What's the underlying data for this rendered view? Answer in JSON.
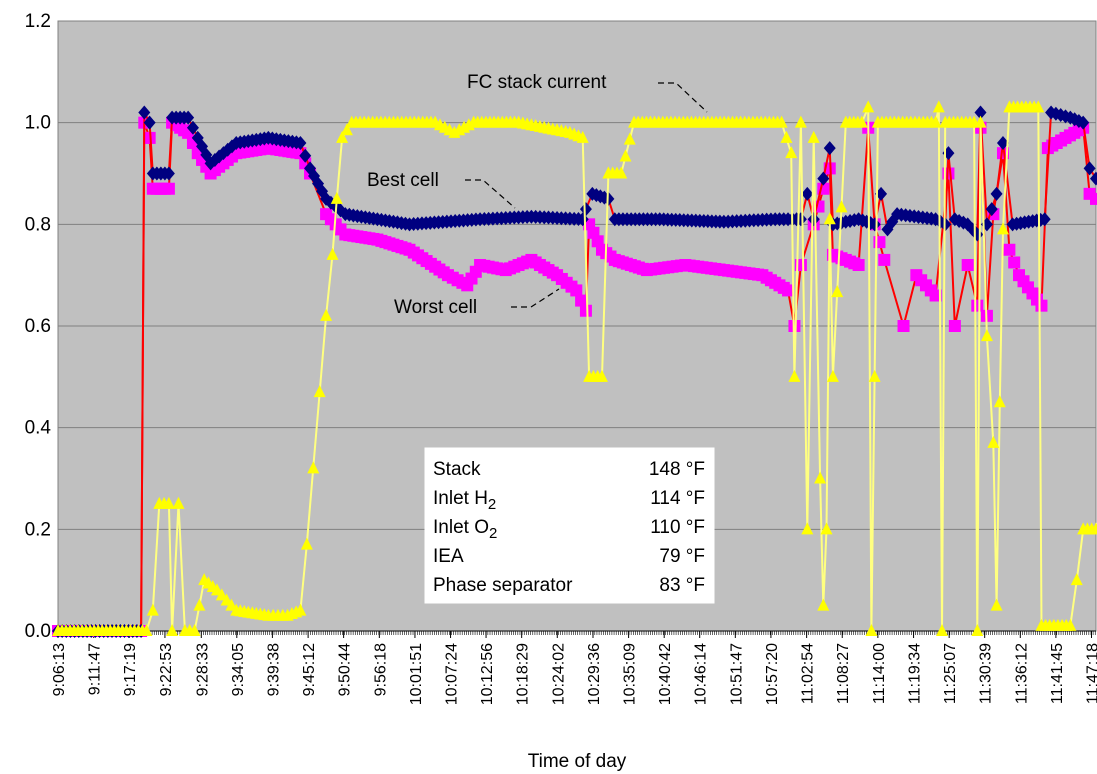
{
  "chart_data": {
    "type": "line",
    "title": "",
    "xlabel": "Time of day",
    "ylabel": "",
    "ylim": [
      0,
      1.2
    ],
    "y_ticks": [
      "0.0",
      "0.2",
      "0.4",
      "0.6",
      "0.8",
      "1.0",
      "1.2"
    ],
    "grid": "horizontal",
    "x_tick_labels": [
      "9:06:13",
      "9:11:47",
      "9:17:19",
      "9:22:53",
      "9:28:33",
      "9:34:05",
      "9:39:38",
      "9:45:12",
      "9:50:44",
      "9:56:18",
      "10:01:51",
      "10:07:24",
      "10:12:56",
      "10:18:29",
      "10:24:02",
      "10:29:36",
      "10:35:09",
      "10:40:42",
      "10:46:14",
      "10:51:47",
      "10:57:20",
      "11:02:54",
      "11:08:27",
      "11:14:00",
      "11:19:34",
      "11:25:07",
      "11:30:39",
      "11:36:12",
      "11:41:45",
      "11:47:18"
    ],
    "x_start": "9:06:13",
    "x_end": "11:48:00",
    "series": [
      {
        "name": "Best cell",
        "color": "#000080",
        "marker": "diamond",
        "points": [
          [
            "9:06:13",
            0.0
          ],
          [
            "9:19:10",
            0.0
          ],
          [
            "9:19:40",
            1.02
          ],
          [
            "9:20:30",
            1.0
          ],
          [
            "9:21:00",
            0.9
          ],
          [
            "9:23:30",
            0.9
          ],
          [
            "9:24:00",
            1.01
          ],
          [
            "9:26:30",
            1.01
          ],
          [
            "9:28:00",
            0.97
          ],
          [
            "9:30:00",
            0.92
          ],
          [
            "9:34:00",
            0.96
          ],
          [
            "9:39:00",
            0.97
          ],
          [
            "9:44:00",
            0.96
          ],
          [
            "9:45:30",
            0.91
          ],
          [
            "9:48:00",
            0.85
          ],
          [
            "9:51:00",
            0.82
          ],
          [
            "9:56:00",
            0.81
          ],
          [
            "10:01:00",
            0.8
          ],
          [
            "10:12:00",
            0.81
          ],
          [
            "10:20:00",
            0.815
          ],
          [
            "10:28:00",
            0.81
          ],
          [
            "10:28:30",
            0.83
          ],
          [
            "10:29:30",
            0.86
          ],
          [
            "10:32:00",
            0.85
          ],
          [
            "10:33:00",
            0.81
          ],
          [
            "10:40:00",
            0.81
          ],
          [
            "10:50:00",
            0.805
          ],
          [
            "10:58:00",
            0.81
          ],
          [
            "11:02:00",
            0.81
          ],
          [
            "11:03:00",
            0.86
          ],
          [
            "11:04:00",
            0.81
          ],
          [
            "11:05:30",
            0.89
          ],
          [
            "11:06:30",
            0.95
          ],
          [
            "11:07:00",
            0.8
          ],
          [
            "11:11:00",
            0.81
          ],
          [
            "11:13:30",
            0.8
          ],
          [
            "11:14:30",
            0.86
          ],
          [
            "11:15:30",
            0.79
          ],
          [
            "11:17:00",
            0.82
          ],
          [
            "11:23:00",
            0.81
          ],
          [
            "11:24:30",
            0.8
          ],
          [
            "11:25:00",
            0.94
          ],
          [
            "11:26:00",
            0.81
          ],
          [
            "11:28:00",
            0.8
          ],
          [
            "11:29:30",
            0.78
          ],
          [
            "11:30:00",
            1.02
          ],
          [
            "11:31:00",
            0.8
          ],
          [
            "11:32:30",
            0.86
          ],
          [
            "11:33:30",
            0.96
          ],
          [
            "11:35:00",
            0.8
          ],
          [
            "11:40:00",
            0.81
          ],
          [
            "11:41:00",
            1.02
          ],
          [
            "11:44:00",
            1.01
          ],
          [
            "11:46:00",
            1.0
          ],
          [
            "11:47:00",
            0.91
          ],
          [
            "11:48:00",
            0.89
          ]
        ]
      },
      {
        "name": "Worst cell",
        "color": "#ff00ff",
        "marker": "square",
        "points": [
          [
            "9:06:13",
            0.0
          ],
          [
            "9:19:10",
            0.0
          ],
          [
            "9:19:40",
            1.0
          ],
          [
            "9:20:30",
            0.97
          ],
          [
            "9:21:00",
            0.87
          ],
          [
            "9:23:30",
            0.87
          ],
          [
            "9:24:00",
            1.0
          ],
          [
            "9:26:30",
            0.98
          ],
          [
            "9:28:00",
            0.94
          ],
          [
            "9:30:00",
            0.9
          ],
          [
            "9:34:00",
            0.94
          ],
          [
            "9:39:00",
            0.95
          ],
          [
            "9:44:00",
            0.94
          ],
          [
            "9:45:30",
            0.9
          ],
          [
            "9:48:00",
            0.82
          ],
          [
            "9:51:00",
            0.78
          ],
          [
            "9:56:00",
            0.77
          ],
          [
            "10:01:00",
            0.75
          ],
          [
            "10:07:00",
            0.7
          ],
          [
            "10:10:00",
            0.68
          ],
          [
            "10:12:00",
            0.72
          ],
          [
            "10:16:00",
            0.71
          ],
          [
            "10:20:00",
            0.73
          ],
          [
            "10:24:00",
            0.7
          ],
          [
            "10:27:00",
            0.67
          ],
          [
            "10:28:30",
            0.63
          ],
          [
            "10:29:00",
            0.8
          ],
          [
            "10:31:00",
            0.75
          ],
          [
            "10:33:00",
            0.73
          ],
          [
            "10:38:00",
            0.71
          ],
          [
            "10:44:00",
            0.72
          ],
          [
            "10:50:00",
            0.71
          ],
          [
            "10:56:00",
            0.7
          ],
          [
            "11:00:00",
            0.67
          ],
          [
            "11:01:00",
            0.6
          ],
          [
            "11:02:00",
            0.72
          ],
          [
            "11:04:00",
            0.8
          ],
          [
            "11:05:30",
            0.87
          ],
          [
            "11:06:30",
            0.91
          ],
          [
            "11:07:00",
            0.74
          ],
          [
            "11:11:00",
            0.72
          ],
          [
            "11:12:30",
            0.99
          ],
          [
            "11:13:30",
            0.8
          ],
          [
            "11:15:00",
            0.73
          ],
          [
            "11:18:00",
            0.6
          ],
          [
            "11:20:00",
            0.7
          ],
          [
            "11:23:00",
            0.66
          ],
          [
            "11:25:00",
            0.9
          ],
          [
            "11:26:00",
            0.6
          ],
          [
            "11:28:00",
            0.72
          ],
          [
            "11:29:30",
            0.64
          ],
          [
            "11:30:00",
            0.99
          ],
          [
            "11:31:00",
            0.62
          ],
          [
            "11:32:00",
            0.82
          ],
          [
            "11:33:30",
            0.94
          ],
          [
            "11:34:30",
            0.75
          ],
          [
            "11:36:00",
            0.7
          ],
          [
            "11:39:30",
            0.64
          ],
          [
            "11:40:30",
            0.95
          ],
          [
            "11:46:00",
            0.99
          ],
          [
            "11:47:00",
            0.86
          ],
          [
            "11:48:00",
            0.85
          ]
        ]
      },
      {
        "name": "FC stack current",
        "color": "#ffff00",
        "marker": "triangle",
        "points": [
          [
            "9:06:13",
            0.0
          ],
          [
            "9:20:00",
            0.0
          ],
          [
            "9:21:00",
            0.04
          ],
          [
            "9:22:00",
            0.25
          ],
          [
            "9:23:30",
            0.25
          ],
          [
            "9:24:00",
            0.0
          ],
          [
            "9:25:00",
            0.25
          ],
          [
            "9:26:00",
            0.0
          ],
          [
            "9:27:30",
            0.0
          ],
          [
            "9:29:00",
            0.1
          ],
          [
            "9:31:00",
            0.08
          ],
          [
            "9:34:00",
            0.04
          ],
          [
            "9:39:00",
            0.03
          ],
          [
            "9:42:00",
            0.03
          ],
          [
            "9:44:00",
            0.04
          ],
          [
            "9:45:00",
            0.17
          ],
          [
            "9:46:00",
            0.32
          ],
          [
            "9:47:00",
            0.47
          ],
          [
            "9:48:00",
            0.62
          ],
          [
            "9:49:00",
            0.74
          ],
          [
            "9:49:40",
            0.85
          ],
          [
            "9:50:30",
            0.97
          ],
          [
            "9:52:00",
            1.0
          ],
          [
            "10:05:00",
            1.0
          ],
          [
            "10:08:00",
            0.98
          ],
          [
            "10:11:00",
            1.0
          ],
          [
            "10:18:00",
            1.0
          ],
          [
            "10:22:00",
            0.99
          ],
          [
            "10:26:00",
            0.98
          ],
          [
            "10:28:00",
            0.97
          ],
          [
            "10:29:00",
            0.5
          ],
          [
            "10:31:00",
            0.5
          ],
          [
            "10:32:00",
            0.9
          ],
          [
            "10:34:00",
            0.9
          ],
          [
            "10:36:00",
            1.0
          ],
          [
            "10:59:00",
            1.0
          ],
          [
            "11:00:30",
            0.94
          ],
          [
            "11:01:00",
            0.5
          ],
          [
            "11:02:00",
            1.0
          ],
          [
            "11:03:00",
            0.2
          ],
          [
            "11:04:00",
            0.97
          ],
          [
            "11:05:00",
            0.3
          ],
          [
            "11:05:30",
            0.05
          ],
          [
            "11:06:00",
            0.2
          ],
          [
            "11:06:30",
            0.81
          ],
          [
            "11:07:00",
            0.5
          ],
          [
            "11:09:00",
            1.0
          ],
          [
            "11:11:30",
            1.0
          ],
          [
            "11:12:30",
            1.03
          ],
          [
            "11:13:00",
            0.0
          ],
          [
            "11:13:30",
            0.5
          ],
          [
            "11:14:00",
            1.0
          ],
          [
            "11:23:00",
            1.0
          ],
          [
            "11:23:30",
            1.03
          ],
          [
            "11:24:00",
            0.0
          ],
          [
            "11:24:30",
            1.0
          ],
          [
            "11:29:00",
            1.0
          ],
          [
            "11:29:30",
            0.0
          ],
          [
            "11:30:00",
            1.0
          ],
          [
            "11:31:00",
            0.58
          ],
          [
            "11:32:00",
            0.37
          ],
          [
            "11:32:30",
            0.05
          ],
          [
            "11:33:00",
            0.45
          ],
          [
            "11:33:30",
            0.79
          ],
          [
            "11:34:30",
            1.03
          ],
          [
            "11:39:00",
            1.03
          ],
          [
            "11:39:30",
            0.01
          ],
          [
            "11:44:00",
            0.01
          ],
          [
            "11:45:00",
            0.1
          ],
          [
            "11:46:00",
            0.2
          ],
          [
            "11:48:00",
            0.2
          ]
        ]
      }
    ],
    "annotations": {
      "fc_stack_current": "FC stack current",
      "best_cell": "Best cell",
      "worst_cell": "Worst cell"
    },
    "info_box": [
      {
        "label": "Stack",
        "label_sub": "",
        "value": "148 °F"
      },
      {
        "label": "Inlet H",
        "label_sub": "2",
        "value": "114 °F"
      },
      {
        "label": "Inlet O",
        "label_sub": "2",
        "value": "110 °F"
      },
      {
        "label": "IEA",
        "label_sub": "",
        "value": "79 °F"
      },
      {
        "label": "Phase separator",
        "label_sub": "",
        "value": "83 °F"
      }
    ],
    "colors": {
      "plot_background": "#c0c0c0",
      "line_connector": "#ff0000"
    }
  }
}
